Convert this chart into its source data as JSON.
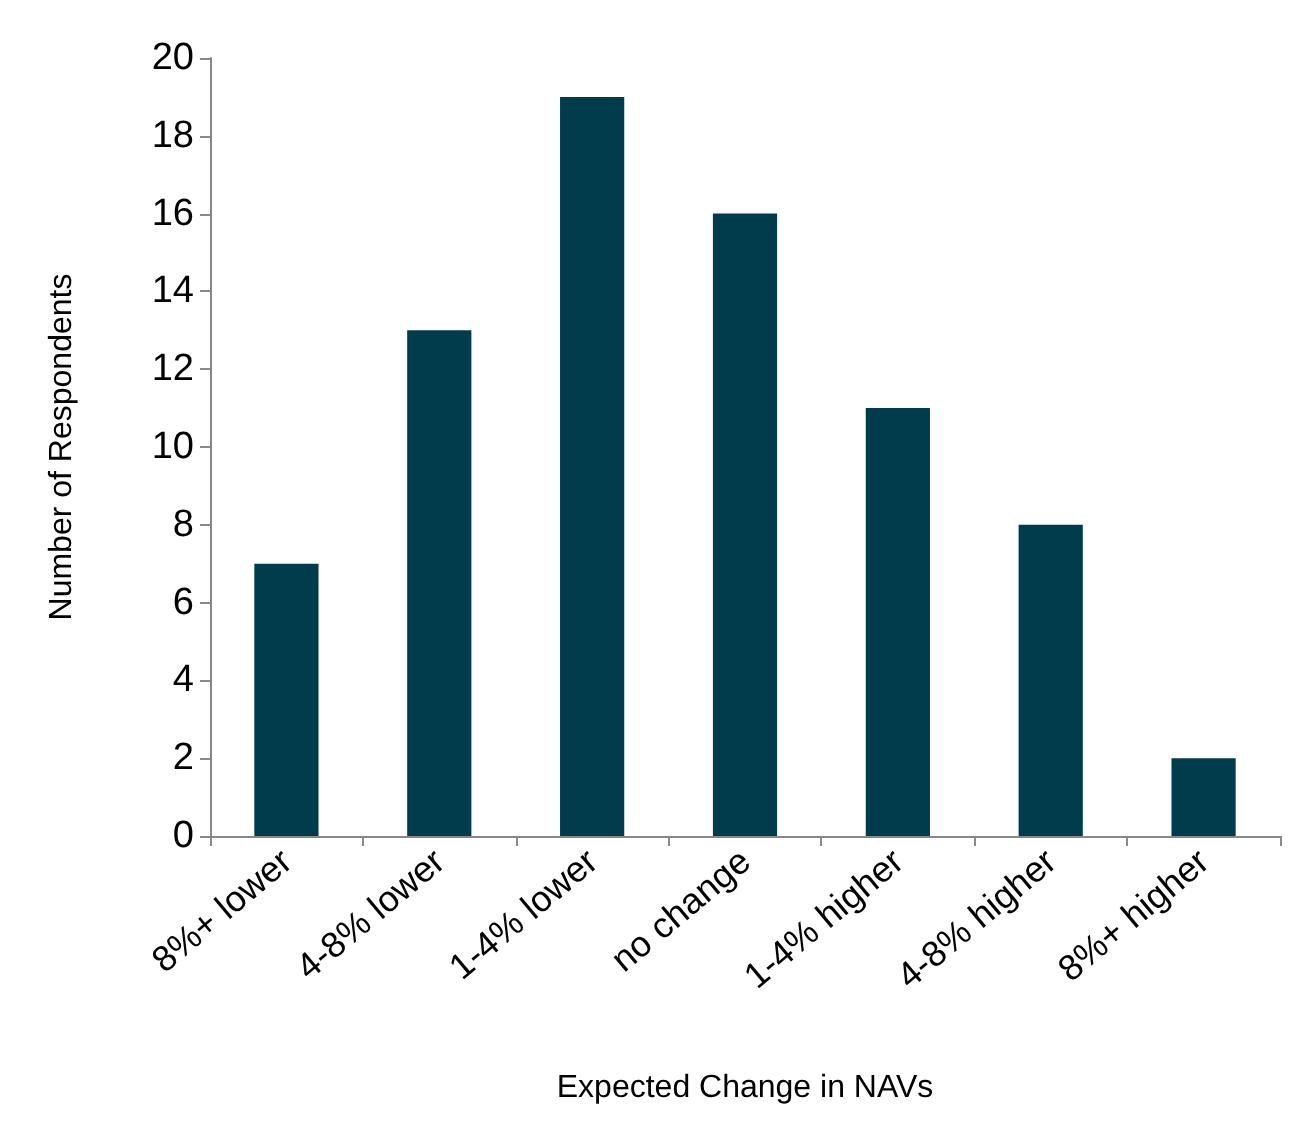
{
  "chart_data": {
    "type": "bar",
    "xlabel": "Expected Change in NAVs",
    "ylabel": "Number of Respondents",
    "categories": [
      "8%+ lower",
      "4-8% lower",
      "1-4% lower",
      "no change",
      "1-4% higher",
      "4-8% higher",
      "8%+ higher"
    ],
    "values": [
      7,
      13,
      19,
      16,
      11,
      8,
      2
    ],
    "color": "#013c4c",
    "ylim": [
      0,
      20
    ],
    "yticks": [
      0,
      2,
      4,
      6,
      8,
      10,
      12,
      14,
      16,
      18,
      20
    ],
    "grid": false
  }
}
